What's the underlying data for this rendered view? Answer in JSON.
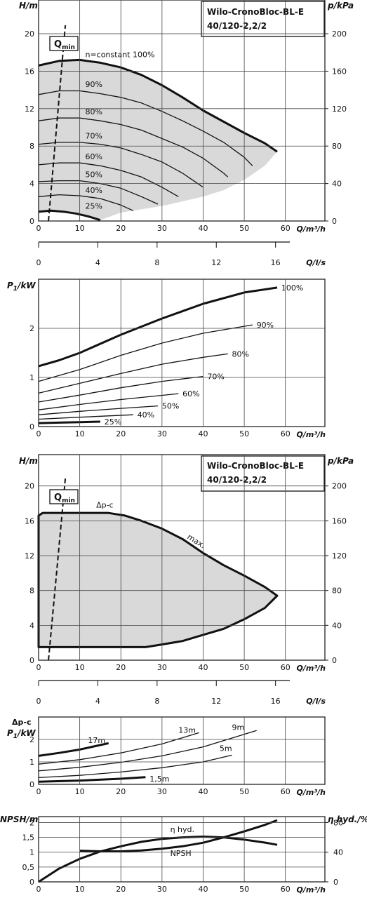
{
  "chart_data": [
    {
      "type": "line",
      "id": "h-q-variable",
      "title": "Wilo-CronoBloc-BL-E 40/120-2,2/2",
      "ylabel": "H/m",
      "ylabel2": "p/kPa",
      "xlabel": "Q/m³/h",
      "xlabel2": "Q/l/s",
      "xlim": [
        0,
        70
      ],
      "ylim": [
        0,
        24
      ],
      "y2ticks": [
        "0",
        "40",
        "80",
        "120",
        "160",
        "200"
      ],
      "xticks": [
        "0",
        "10",
        "20",
        "30",
        "40",
        "50",
        "60"
      ],
      "yticks": [
        "0",
        "4",
        "8",
        "12",
        "16",
        "20"
      ],
      "x2ticks": [
        "0",
        "4",
        "8",
        "12",
        "16"
      ],
      "qmin_label": "Q",
      "qmin_sub": "min",
      "qmin_line": [
        [
          2.4,
          0
        ],
        [
          6.5,
          21.5
        ]
      ],
      "grid": true,
      "series": [
        {
          "name": "n=constant 100%",
          "bold": true,
          "x": [
            0,
            5,
            10,
            15,
            20,
            25,
            30,
            35,
            40,
            45,
            50,
            55,
            58
          ],
          "y": [
            16.6,
            17.1,
            17.2,
            16.9,
            16.4,
            15.6,
            14.5,
            13.2,
            11.8,
            10.6,
            9.4,
            8.3,
            7.4
          ]
        },
        {
          "name": "90%",
          "x": [
            0,
            5,
            10,
            15,
            20,
            25,
            30,
            35,
            40,
            45,
            50,
            52
          ],
          "y": [
            13.5,
            13.9,
            13.9,
            13.6,
            13.2,
            12.6,
            11.7,
            10.7,
            9.6,
            8.4,
            6.8,
            5.9
          ]
        },
        {
          "name": "80%",
          "x": [
            0,
            5,
            10,
            15,
            20,
            25,
            30,
            35,
            40,
            45,
            46
          ],
          "y": [
            10.7,
            11.0,
            11.0,
            10.7,
            10.3,
            9.7,
            8.8,
            7.9,
            6.7,
            5.1,
            4.7
          ]
        },
        {
          "name": "70%",
          "x": [
            0,
            5,
            10,
            15,
            20,
            25,
            30,
            35,
            40
          ],
          "y": [
            8.2,
            8.4,
            8.4,
            8.2,
            7.8,
            7.1,
            6.3,
            5.1,
            3.6
          ]
        },
        {
          "name": "60%",
          "x": [
            0,
            5,
            10,
            15,
            20,
            25,
            30,
            34
          ],
          "y": [
            6.0,
            6.2,
            6.2,
            5.9,
            5.4,
            4.7,
            3.6,
            2.6
          ]
        },
        {
          "name": "50%",
          "x": [
            0,
            5,
            10,
            15,
            20,
            25,
            29
          ],
          "y": [
            4.2,
            4.3,
            4.3,
            4.0,
            3.5,
            2.6,
            1.8
          ]
        },
        {
          "name": "40%",
          "x": [
            0,
            5,
            10,
            15,
            20,
            23
          ],
          "y": [
            2.6,
            2.8,
            2.7,
            2.4,
            1.7,
            1.1
          ]
        },
        {
          "name": "25%",
          "bold": true,
          "x": [
            0,
            3,
            6,
            9,
            12,
            15
          ],
          "y": [
            1.0,
            1.1,
            1.0,
            0.8,
            0.5,
            0.1
          ]
        }
      ],
      "area_upper": [
        [
          0,
          16.6
        ],
        [
          5,
          17.1
        ],
        [
          10,
          17.2
        ],
        [
          15,
          16.9
        ],
        [
          20,
          16.4
        ],
        [
          25,
          15.6
        ],
        [
          30,
          14.5
        ],
        [
          35,
          13.2
        ],
        [
          40,
          11.8
        ],
        [
          45,
          10.6
        ],
        [
          50,
          9.4
        ],
        [
          55,
          8.3
        ],
        [
          58,
          7.4
        ]
      ],
      "area_lower": [
        [
          58,
          7.4
        ],
        [
          55,
          5.9
        ],
        [
          50,
          4.4
        ],
        [
          45,
          3.3
        ],
        [
          40,
          2.6
        ],
        [
          30,
          1.6
        ],
        [
          20,
          0.9
        ],
        [
          15,
          0.1
        ],
        [
          12,
          0.5
        ],
        [
          6,
          1.0
        ],
        [
          0,
          1.0
        ]
      ],
      "labels": [
        {
          "text": "n=constant 100%",
          "x": 11,
          "y": 17.5
        },
        {
          "text": "90%",
          "x": 11,
          "y": 14.3
        },
        {
          "text": "80%",
          "x": 11,
          "y": 11.4
        },
        {
          "text": "70%",
          "x": 11,
          "y": 8.8
        },
        {
          "text": "60%",
          "x": 11,
          "y": 6.6
        },
        {
          "text": "50%",
          "x": 11,
          "y": 4.7
        },
        {
          "text": "40%",
          "x": 11,
          "y": 3.0
        },
        {
          "text": "25%",
          "x": 11,
          "y": 1.3
        }
      ]
    },
    {
      "type": "line",
      "id": "p1-q-variable",
      "ylabel": "P",
      "ylabel_sub": "1",
      "ylabel_unit": "/kW",
      "xlabel": "Q/m³/h",
      "xlim": [
        0,
        70
      ],
      "ylim": [
        0,
        3
      ],
      "xticks": [
        "0",
        "10",
        "20",
        "30",
        "40",
        "50",
        "60"
      ],
      "yticks": [
        "0",
        "1",
        "2"
      ],
      "grid": true,
      "series": [
        {
          "name": "100%",
          "bold": true,
          "x": [
            0,
            5,
            10,
            20,
            30,
            40,
            50,
            58
          ],
          "y": [
            1.23,
            1.35,
            1.5,
            1.87,
            2.2,
            2.5,
            2.73,
            2.83
          ]
        },
        {
          "name": "90%",
          "x": [
            0,
            10,
            20,
            30,
            40,
            52
          ],
          "y": [
            0.92,
            1.16,
            1.45,
            1.7,
            1.9,
            2.07
          ]
        },
        {
          "name": "80%",
          "x": [
            0,
            10,
            20,
            30,
            40,
            46
          ],
          "y": [
            0.68,
            0.88,
            1.08,
            1.27,
            1.41,
            1.48
          ]
        },
        {
          "name": "70%",
          "x": [
            0,
            10,
            20,
            30,
            40
          ],
          "y": [
            0.5,
            0.64,
            0.79,
            0.92,
            1.02
          ]
        },
        {
          "name": "60%",
          "x": [
            0,
            10,
            20,
            34
          ],
          "y": [
            0.34,
            0.45,
            0.55,
            0.67
          ]
        },
        {
          "name": "50%",
          "x": [
            0,
            10,
            20,
            29
          ],
          "y": [
            0.24,
            0.31,
            0.37,
            0.42
          ]
        },
        {
          "name": "40%",
          "x": [
            0,
            10,
            23
          ],
          "y": [
            0.15,
            0.19,
            0.24
          ]
        },
        {
          "name": "25%",
          "bold": true,
          "x": [
            0,
            5,
            10,
            15
          ],
          "y": [
            0.07,
            0.08,
            0.09,
            0.1
          ]
        }
      ],
      "labels": [
        {
          "text": "100%",
          "x": 59,
          "y": 2.83
        },
        {
          "text": "90%",
          "x": 53,
          "y": 2.07
        },
        {
          "text": "80%",
          "x": 47,
          "y": 1.48
        },
        {
          "text": "70%",
          "x": 41,
          "y": 1.02
        },
        {
          "text": "60%",
          "x": 35,
          "y": 0.67
        },
        {
          "text": "50%",
          "x": 30,
          "y": 0.42
        },
        {
          "text": "40%",
          "x": 24,
          "y": 0.24
        },
        {
          "text": "25%",
          "x": 16,
          "y": 0.1
        }
      ]
    },
    {
      "type": "area",
      "id": "h-q-dpc",
      "title": "Wilo-CronoBloc-BL-E 40/120-2,2/2",
      "ylabel": "H/m",
      "ylabel2": "p/kPa",
      "xlabel": "Q/m³/h",
      "xlabel2": "Q/l/s",
      "xlim": [
        0,
        70
      ],
      "ylim": [
        0,
        24
      ],
      "xticks": [
        "0",
        "10",
        "20",
        "30",
        "40",
        "50",
        "60"
      ],
      "yticks": [
        "0",
        "4",
        "8",
        "12",
        "16",
        "20"
      ],
      "y2ticks": [
        "0",
        "40",
        "80",
        "120",
        "160",
        "200"
      ],
      "x2ticks": [
        "0",
        "4",
        "8",
        "12",
        "16"
      ],
      "qmin_label": "Q",
      "qmin_sub": "min",
      "qmin_line": [
        [
          2.4,
          0
        ],
        [
          6.5,
          21.5
        ]
      ],
      "grid": true,
      "boundary": [
        [
          0,
          16.6
        ],
        [
          1,
          16.9
        ],
        [
          17,
          16.9
        ],
        [
          21,
          16.6
        ],
        [
          25,
          16.0
        ],
        [
          30,
          15.1
        ],
        [
          35,
          13.9
        ],
        [
          40,
          12.3
        ],
        [
          45,
          10.9
        ],
        [
          50,
          9.7
        ],
        [
          55,
          8.4
        ],
        [
          58,
          7.4
        ],
        [
          55,
          6.0
        ],
        [
          50,
          4.7
        ],
        [
          45,
          3.6
        ],
        [
          40,
          2.9
        ],
        [
          35,
          2.2
        ],
        [
          30,
          1.8
        ],
        [
          26,
          1.5
        ],
        [
          0,
          1.5
        ]
      ],
      "labels": [
        {
          "text": "Δp-c",
          "x": 14,
          "y": 17.5
        },
        {
          "text": "max.",
          "x": 36,
          "y": 14.0
        }
      ]
    },
    {
      "type": "line",
      "id": "p1-q-dpc",
      "ylabel": "Δp-c",
      "ylabel_p": "P",
      "ylabel_sub": "1",
      "ylabel_unit": "/kW",
      "xlabel": "Q/m³/h",
      "xlim": [
        0,
        70
      ],
      "ylim": [
        0,
        3
      ],
      "xticks": [
        "0",
        "10",
        "20",
        "30",
        "40",
        "50",
        "60"
      ],
      "yticks": [
        "0",
        "1",
        "2"
      ],
      "grid": true,
      "series": [
        {
          "name": "17m",
          "bold": true,
          "x": [
            0,
            5,
            10,
            17
          ],
          "y": [
            1.27,
            1.4,
            1.55,
            1.83
          ]
        },
        {
          "name": "13m",
          "x": [
            0,
            10,
            20,
            30,
            39
          ],
          "y": [
            0.9,
            1.1,
            1.4,
            1.8,
            2.3
          ]
        },
        {
          "name": "9m",
          "x": [
            0,
            10,
            20,
            30,
            40,
            53
          ],
          "y": [
            0.6,
            0.76,
            0.98,
            1.27,
            1.67,
            2.4
          ]
        },
        {
          "name": "5m",
          "x": [
            0,
            10,
            20,
            30,
            40,
            47
          ],
          "y": [
            0.3,
            0.4,
            0.55,
            0.74,
            1.0,
            1.3
          ]
        },
        {
          "name": "1,5m",
          "bold": true,
          "x": [
            0,
            10,
            20,
            26
          ],
          "y": [
            0.12,
            0.17,
            0.25,
            0.32
          ]
        }
      ],
      "labels": [
        {
          "text": "17m",
          "x": 12,
          "y": 1.85
        },
        {
          "text": "13m",
          "x": 34,
          "y": 2.3
        },
        {
          "text": "9m",
          "x": 47,
          "y": 2.42
        },
        {
          "text": "5m",
          "x": 44,
          "y": 1.48
        },
        {
          "text": "1,5m",
          "x": 27,
          "y": 0.12
        }
      ]
    },
    {
      "type": "line",
      "id": "npsh-eta",
      "ylabel": "NPSH/m",
      "ylabel2": "η hyd./%",
      "xlabel": "Q/m³/h",
      "xlim": [
        0,
        70
      ],
      "ylim": [
        0,
        2.5
      ],
      "y2lim": [
        0,
        100
      ],
      "xticks": [
        "0",
        "10",
        "20",
        "30",
        "40",
        "50",
        "60"
      ],
      "yticks": [
        "0",
        "0,5",
        "1",
        "1,5",
        "2"
      ],
      "y2ticks": [
        "0",
        "40",
        "80"
      ],
      "grid": true,
      "series": [
        {
          "name": "NPSH",
          "x": [
            10,
            15,
            20,
            25,
            30,
            35,
            40,
            45,
            50,
            55,
            58
          ],
          "y": [
            1.05,
            1.03,
            1.03,
            1.06,
            1.12,
            1.2,
            1.32,
            1.5,
            1.7,
            1.92,
            2.08
          ]
        },
        {
          "name": "η hyd.",
          "axis": "right",
          "x": [
            0,
            5,
            10,
            15,
            20,
            25,
            30,
            35,
            40,
            45,
            50,
            55,
            58
          ],
          "y": [
            0,
            18,
            31,
            41,
            48,
            54,
            58,
            60,
            61,
            60,
            57,
            53,
            50
          ]
        }
      ],
      "labels": [
        {
          "text": "η hyd.",
          "x": 32,
          "y": 1.68
        },
        {
          "text": "NPSH",
          "x": 32,
          "y": 0.88
        }
      ]
    }
  ]
}
